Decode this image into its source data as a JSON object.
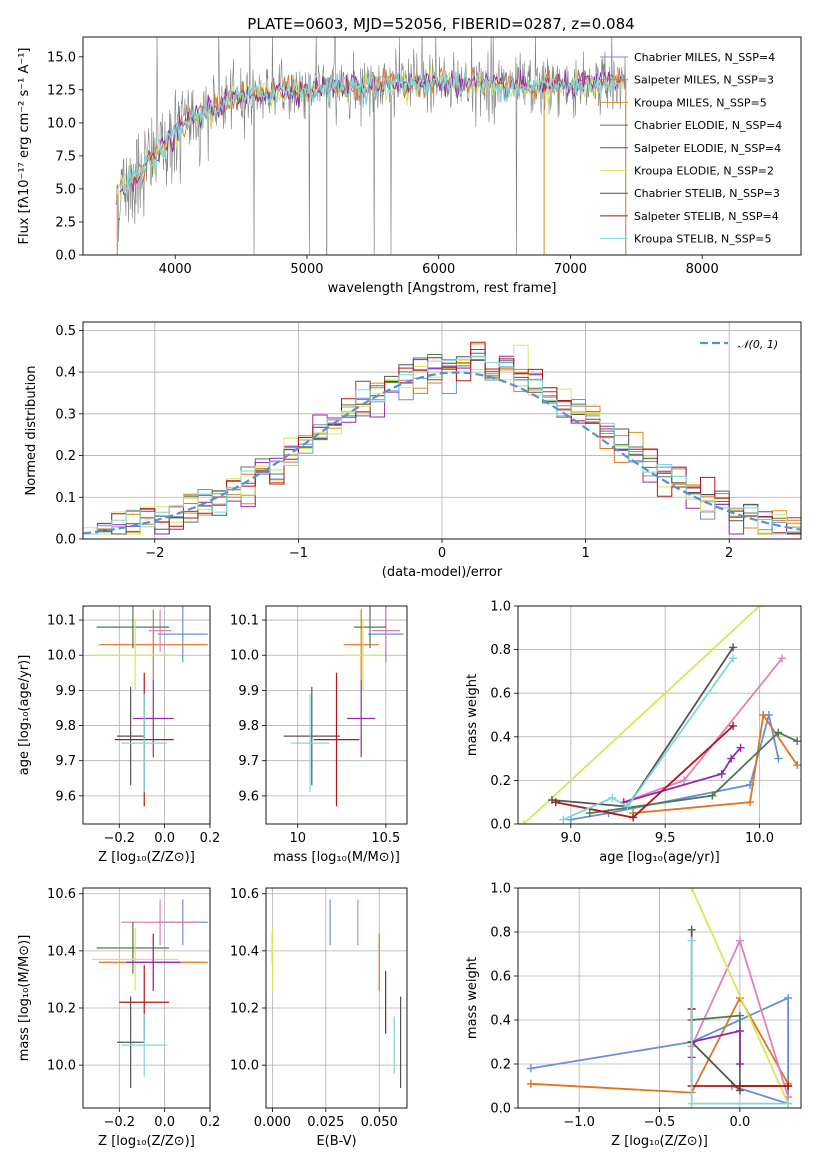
{
  "title": "PLATE=0603, MJD=52056, FIBERID=0287, z=0.084",
  "colors": {
    "chabrier_miles": "#6a8fdc",
    "salpeter_miles": "#e07424",
    "kroupa_miles": "#d6901e",
    "chabrier_elodie": "#4f7a55",
    "salpeter_elodie": "#9527b0",
    "kroupa_elodie": "#d4e85a",
    "chabrier_stelib": "#555555",
    "salpeter_stelib": "#b01818",
    "kroupa_stelib": "#7fd8d8",
    "pink": "#e080b8",
    "data": "#808080",
    "gauss": "#5a8fd8"
  },
  "chart_data": [
    {
      "type": "line",
      "title": "PLATE=0603, MJD=52056, FIBERID=0287, z=0.084",
      "xlabel": "wavelength [Angstrom, rest frame]",
      "ylabel": "Flux [fλ10⁻¹⁷ erg cm⁻² s⁻¹ A⁻¹]",
      "xlim": [
        3300,
        8750
      ],
      "ylim": [
        0,
        16.5
      ],
      "xticks": [
        "4000",
        "5000",
        "6000",
        "7000",
        "8000"
      ],
      "yticks": [
        "0.0",
        "2.5",
        "5.0",
        "7.5",
        "10.0",
        "12.5",
        "15.0"
      ],
      "legend_position": "top-right",
      "continuum_x": [
        3550,
        3700,
        3900,
        4100,
        4400,
        4700,
        5000,
        5500,
        6000,
        6500,
        7000,
        7400
      ],
      "continuum_y": [
        4.5,
        6.0,
        8.0,
        10.2,
        11.7,
        12.3,
        12.6,
        12.9,
        13.1,
        12.7,
        12.8,
        13.2
      ],
      "legend": [
        "Chabrier MILES, N_SSP=4",
        "Salpeter MILES, N_SSP=3",
        "Kroupa MILES, N_SSP=5",
        "Chabrier ELODIE, N_SSP=4",
        "Salpeter ELODIE, N_SSP=4",
        "Kroupa ELODIE, N_SSP=2",
        "Chabrier STELIB, N_SSP=3",
        "Salpeter STELIB, N_SSP=4",
        "Kroupa STELIB, N_SSP=5"
      ]
    },
    {
      "type": "bar",
      "xlabel": "(data-model)/error",
      "ylabel": "Normed distribution",
      "xlim": [
        -2.5,
        2.5
      ],
      "ylim": [
        0,
        0.52
      ],
      "xticks": [
        "−2",
        "−1",
        "0",
        "1",
        "2"
      ],
      "yticks": [
        "0.0",
        "0.1",
        "0.2",
        "0.3",
        "0.4",
        "0.5"
      ],
      "legend": [
        "𝒩(0, 1)"
      ],
      "legend_position": "top-right",
      "bin_width": 0.1
    },
    {
      "type": "scatter",
      "xlabel": "Z [log₁₀(Z/Z⊙)]",
      "ylabel": "age  [log₁₀(age/yr)]",
      "xlim": [
        -0.36,
        0.2
      ],
      "ylim": [
        9.52,
        10.14
      ],
      "xticks": [
        "−0.2",
        "0.0",
        "0.2"
      ],
      "yticks": [
        "9.6",
        "9.7",
        "9.8",
        "9.9",
        "10.0",
        "10.1"
      ],
      "points": [
        {
          "x": 0.08,
          "y": 10.06,
          "xerr": 0.11,
          "yerr": 0.08,
          "color": "chabrier_miles"
        },
        {
          "x": -0.05,
          "y": 10.03,
          "xerr": 0.24,
          "yerr": 0.1,
          "color": "salpeter_miles"
        },
        {
          "x": -0.02,
          "y": 10.07,
          "xerr": 0.05,
          "yerr": 0.06,
          "color": "pink"
        },
        {
          "x": -0.14,
          "y": 10.08,
          "xerr": 0.16,
          "yerr": 0.06,
          "color": "chabrier_elodie"
        },
        {
          "x": -0.13,
          "y": 10.0,
          "xerr": 0.19,
          "yerr": 0.1,
          "color": "kroupa_elodie"
        },
        {
          "x": -0.05,
          "y": 9.82,
          "xerr": 0.09,
          "yerr": 0.11,
          "color": "salpeter_elodie"
        },
        {
          "x": -0.15,
          "y": 9.77,
          "xerr": 0.06,
          "yerr": 0.14,
          "color": "chabrier_stelib"
        },
        {
          "x": -0.09,
          "y": 9.76,
          "xerr": 0.13,
          "yerr": 0.19,
          "color": "salpeter_stelib"
        },
        {
          "x": -0.09,
          "y": 9.75,
          "xerr": 0.1,
          "yerr": 0.14,
          "color": "kroupa_stelib"
        }
      ]
    },
    {
      "type": "scatter",
      "xlabel": "mass [log₁₀(M/M⊙)]",
      "ylabel": "",
      "xlim": [
        9.82,
        10.62
      ],
      "ylim": [
        9.52,
        10.14
      ],
      "xticks": [
        "10",
        "10.5"
      ],
      "yticks": [
        "9.6",
        "9.7",
        "9.8",
        "9.9",
        "10.0",
        "10.1"
      ],
      "points": [
        {
          "x": 10.5,
          "y": 10.06,
          "xerr": 0.1,
          "yerr": 0.08,
          "color": "chabrier_miles"
        },
        {
          "x": 10.36,
          "y": 10.03,
          "xerr": 0.1,
          "yerr": 0.1,
          "color": "salpeter_miles"
        },
        {
          "x": 10.5,
          "y": 10.07,
          "xerr": 0.08,
          "yerr": 0.06,
          "color": "pink"
        },
        {
          "x": 10.41,
          "y": 10.08,
          "xerr": 0.09,
          "yerr": 0.06,
          "color": "chabrier_elodie"
        },
        {
          "x": 10.37,
          "y": 10.0,
          "xerr": 0.11,
          "yerr": 0.1,
          "color": "kroupa_elodie"
        },
        {
          "x": 10.36,
          "y": 9.82,
          "xerr": 0.08,
          "yerr": 0.11,
          "color": "salpeter_elodie"
        },
        {
          "x": 10.08,
          "y": 9.77,
          "xerr": 0.16,
          "yerr": 0.14,
          "color": "chabrier_stelib"
        },
        {
          "x": 10.22,
          "y": 9.76,
          "xerr": 0.13,
          "yerr": 0.19,
          "color": "salpeter_stelib"
        },
        {
          "x": 10.07,
          "y": 9.75,
          "xerr": 0.11,
          "yerr": 0.14,
          "color": "kroupa_stelib"
        }
      ]
    },
    {
      "type": "line",
      "xlabel": "age  [log₁₀(age/yr)]",
      "ylabel": "mass weight",
      "xlim": [
        8.72,
        10.22
      ],
      "ylim": [
        0,
        1.0
      ],
      "xticks": [
        "9.0",
        "9.5",
        "10.0"
      ],
      "yticks": [
        "0.0",
        "0.2",
        "0.4",
        "0.6",
        "0.8",
        "1.0"
      ],
      "series": [
        {
          "color": "chabrier_miles",
          "x": [
            9.0,
            9.2,
            9.95,
            10.05,
            10.1
          ],
          "y": [
            0.02,
            0.05,
            0.18,
            0.5,
            0.3
          ]
        },
        {
          "color": "salpeter_miles",
          "x": [
            9.33,
            9.95,
            10.02,
            10.2
          ],
          "y": [
            0.05,
            0.1,
            0.5,
            0.27
          ]
        },
        {
          "color": "pink",
          "x": [
            9.28,
            9.6,
            10.12
          ],
          "y": [
            0.1,
            0.2,
            0.76
          ]
        },
        {
          "color": "chabrier_elodie",
          "x": [
            9.1,
            9.75,
            10.1,
            10.2
          ],
          "y": [
            0.05,
            0.13,
            0.42,
            0.38
          ]
        },
        {
          "color": "kroupa_elodie",
          "x": [
            8.75,
            10.0
          ],
          "y": [
            0.0,
            1.0
          ]
        },
        {
          "color": "salpeter_elodie",
          "x": [
            9.28,
            9.8,
            9.85,
            9.9
          ],
          "y": [
            0.1,
            0.23,
            0.3,
            0.35
          ]
        },
        {
          "color": "chabrier_stelib",
          "x": [
            8.9,
            9.3,
            9.86
          ],
          "y": [
            0.11,
            0.08,
            0.81
          ]
        },
        {
          "color": "salpeter_stelib",
          "x": [
            8.92,
            9.33,
            9.86
          ],
          "y": [
            0.1,
            0.03,
            0.45
          ]
        },
        {
          "color": "kroupa_stelib",
          "x": [
            8.96,
            9.22,
            9.3,
            9.86
          ],
          "y": [
            0.02,
            0.12,
            0.08,
            0.76
          ]
        }
      ]
    },
    {
      "type": "scatter",
      "xlabel": "Z [log₁₀(Z/Z⊙)]",
      "ylabel": "mass [log₁₀(M/M⊙)]",
      "xlim": [
        -0.36,
        0.2
      ],
      "ylim": [
        9.85,
        10.62
      ],
      "xticks": [
        "−0.2",
        "0.0",
        "0.2"
      ],
      "yticks": [
        "10.0",
        "10.2",
        "10.4",
        "10.6"
      ],
      "points": [
        {
          "x": 0.08,
          "y": 10.5,
          "xerr": 0.11,
          "yerr": 0.08,
          "color": "chabrier_miles"
        },
        {
          "x": -0.05,
          "y": 10.36,
          "xerr": 0.24,
          "yerr": 0.1,
          "color": "salpeter_miles"
        },
        {
          "x": -0.02,
          "y": 10.5,
          "xerr": 0.17,
          "yerr": 0.08,
          "color": "pink"
        },
        {
          "x": -0.14,
          "y": 10.41,
          "xerr": 0.16,
          "yerr": 0.09,
          "color": "chabrier_elodie"
        },
        {
          "x": -0.13,
          "y": 10.37,
          "xerr": 0.19,
          "yerr": 0.11,
          "color": "kroupa_elodie"
        },
        {
          "x": -0.05,
          "y": 10.36,
          "xerr": 0.12,
          "yerr": 0.1,
          "color": "salpeter_elodie"
        },
        {
          "x": -0.15,
          "y": 10.08,
          "xerr": 0.06,
          "yerr": 0.16,
          "color": "chabrier_stelib"
        },
        {
          "x": -0.09,
          "y": 10.22,
          "xerr": 0.11,
          "yerr": 0.13,
          "color": "salpeter_stelib"
        },
        {
          "x": -0.09,
          "y": 10.07,
          "xerr": 0.1,
          "yerr": 0.11,
          "color": "kroupa_stelib"
        }
      ]
    },
    {
      "type": "scatter",
      "xlabel": "E(B-V)",
      "ylabel": "",
      "xlim": [
        -0.003,
        0.063
      ],
      "ylim": [
        9.85,
        10.62
      ],
      "xticks": [
        "0.000",
        "0.025",
        "0.050"
      ],
      "yticks": [
        "10.0",
        "10.2",
        "10.4",
        "10.6"
      ],
      "points": [
        {
          "x": 0.027,
          "y": 10.5,
          "xerr": 0,
          "yerr": 0.08,
          "color": "chabrier_miles"
        },
        {
          "x": 0.05,
          "y": 10.36,
          "xerr": 0,
          "yerr": 0.1,
          "color": "salpeter_miles"
        },
        {
          "x": 0.04,
          "y": 10.5,
          "xerr": 0,
          "yerr": 0.08,
          "color": "pink"
        },
        {
          "x": 0.0,
          "y": 10.41,
          "xerr": 0,
          "yerr": 0.05,
          "color": "chabrier_elodie"
        },
        {
          "x": 0.0,
          "y": 10.37,
          "xerr": 0,
          "yerr": 0.11,
          "color": "kroupa_elodie"
        },
        {
          "x": 0.06,
          "y": 10.08,
          "xerr": 0,
          "yerr": 0.16,
          "color": "chabrier_stelib"
        },
        {
          "x": 0.053,
          "y": 10.22,
          "xerr": 0,
          "yerr": 0.11,
          "color": "salpeter_stelib"
        },
        {
          "x": 0.057,
          "y": 10.07,
          "xerr": 0,
          "yerr": 0.1,
          "color": "kroupa_stelib"
        }
      ]
    },
    {
      "type": "line",
      "xlabel": "Z [log₁₀(Z/Z⊙)]",
      "ylabel": "mass weight",
      "xlim": [
        -1.38,
        0.38
      ],
      "ylim": [
        0,
        1.0
      ],
      "xticks": [
        "−1.0",
        "−0.5",
        "0.0"
      ],
      "yticks": [
        "0.0",
        "0.2",
        "0.4",
        "0.6",
        "0.8",
        "1.0"
      ],
      "series": [
        {
          "color": "chabrier_miles",
          "x": [
            -1.3,
            -0.3,
            0.3,
            0.3,
            -0.05
          ],
          "y": [
            0.18,
            0.3,
            0.5,
            0.02,
            0.1
          ]
        },
        {
          "color": "salpeter_miles",
          "x": [
            -1.3,
            -0.3,
            0.0,
            0.3
          ],
          "y": [
            0.11,
            0.07,
            0.5,
            0.11
          ]
        },
        {
          "color": "pink",
          "x": [
            -0.3,
            0.0,
            0.3
          ],
          "y": [
            0.28,
            0.76,
            0.05
          ]
        },
        {
          "color": "chabrier_elodie",
          "x": [
            -0.3,
            0.0,
            0.0,
            0.3
          ],
          "y": [
            0.4,
            0.42,
            0.1,
            0.1
          ]
        },
        {
          "color": "kroupa_elodie",
          "x": [
            -0.3,
            0.3
          ],
          "y": [
            1.0,
            0.02
          ]
        },
        {
          "color": "salpeter_elodie",
          "x": [
            -0.3,
            -0.3,
            0.0,
            0.0
          ],
          "y": [
            0.23,
            0.3,
            0.35,
            0.2
          ]
        },
        {
          "color": "chabrier_stelib",
          "x": [
            -0.3,
            -0.3,
            0.0
          ],
          "y": [
            0.81,
            0.3,
            0.08
          ]
        },
        {
          "color": "salpeter_stelib",
          "x": [
            -0.3,
            -0.3,
            0.0,
            0.3
          ],
          "y": [
            0.45,
            0.1,
            0.1,
            0.1
          ]
        },
        {
          "color": "kroupa_stelib",
          "x": [
            -0.3,
            -0.3,
            0.3
          ],
          "y": [
            0.76,
            0.02,
            0.02
          ]
        }
      ]
    }
  ]
}
